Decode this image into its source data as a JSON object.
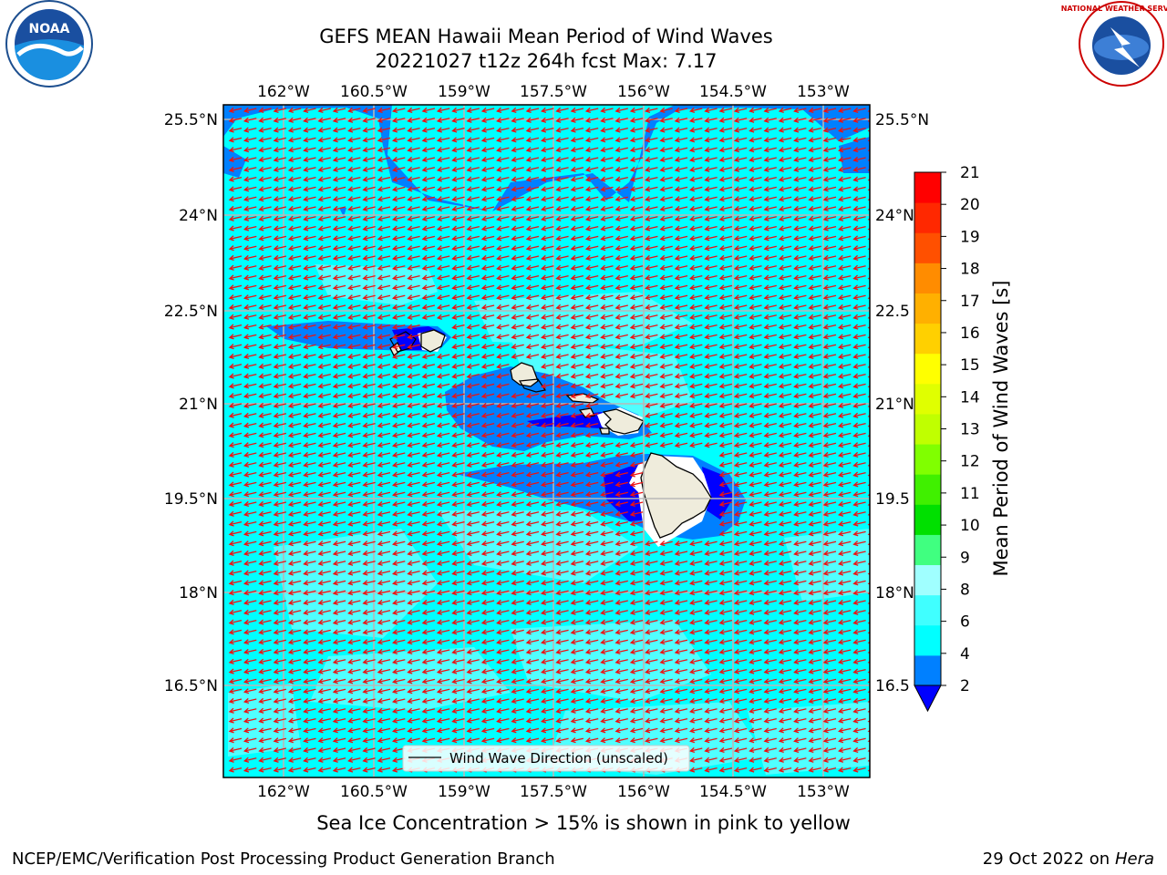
{
  "title": {
    "line1": "GEFS MEAN Hawaii Mean Period of Wind Waves",
    "line2": "20221027 t12z 264h fcst   Max: 7.17"
  },
  "note": "Sea Ice Concentration > 15% is shown in pink to yellow",
  "footer": {
    "left": "NCEP/EMC/Verification Post Processing Product Generation Branch",
    "right_date": "29 Oct 2022 on ",
    "right_host": "Hera"
  },
  "logos": {
    "noaa": "NOAA",
    "nws": "NATIONAL WEATHER SERVICE"
  },
  "map": {
    "lon_ticks": [
      "162°W",
      "160.5°W",
      "159°W",
      "157.5°W",
      "156°W",
      "154.5°W",
      "153°W"
    ],
    "lat_ticks_left": [
      "25.5°N",
      "24°N",
      "22.5°N",
      "21°N",
      "19.5°N",
      "18°N",
      "16.5°N"
    ],
    "lat_ticks_right": [
      "25.5°N",
      "24°N",
      "22.5",
      "21°N",
      "19.5",
      "18°N",
      "16.5"
    ],
    "legend_label": "Wind Wave Direction (unscaled)",
    "arrow_color": "#ee1111",
    "ocean_color": "#00ffff",
    "land_color": "#efecdc"
  },
  "colorbar": {
    "label": "Mean Period of Wind Waves [s]",
    "ticks": [
      "2",
      "4",
      "6",
      "8",
      "9",
      "10",
      "11",
      "12",
      "13",
      "14",
      "15",
      "16",
      "17",
      "18",
      "19",
      "20",
      "21"
    ],
    "colors": [
      "#0080ff",
      "#00ffff",
      "#40ffff",
      "#a0ffff",
      "#40ff80",
      "#00e000",
      "#40f000",
      "#80ff00",
      "#c0ff00",
      "#e0ff00",
      "#ffff00",
      "#ffd000",
      "#ffb000",
      "#ff8c00",
      "#ff5000",
      "#ff2800",
      "#ff0000"
    ],
    "under_color": "#0000ff"
  }
}
